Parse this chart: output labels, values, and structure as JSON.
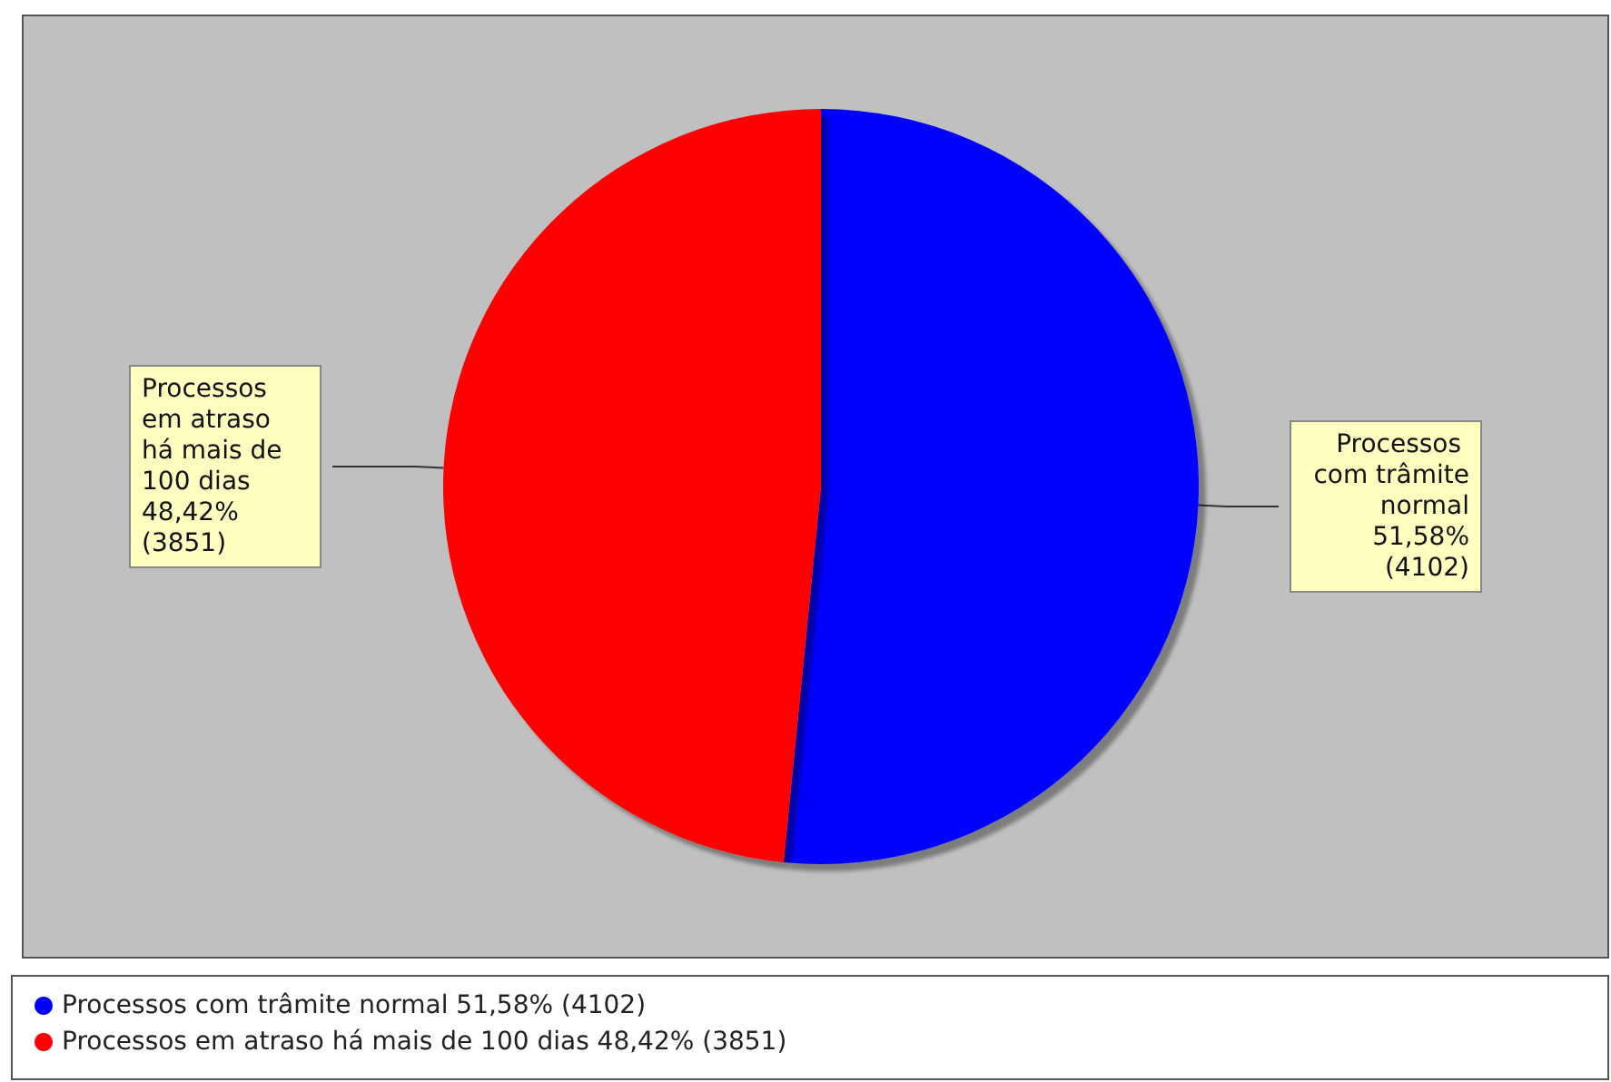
{
  "chart_data": {
    "type": "pie",
    "categories": [
      "Processos com trâmite normal",
      "Processos em atraso há mais de 100 dias"
    ],
    "values": [
      4102,
      3851
    ],
    "colors": [
      "#0000ff",
      "#ff0000"
    ],
    "value_labels": [
      "51,58% (4102)",
      "48,42% (3851)"
    ],
    "legend": "bottom"
  }
}
